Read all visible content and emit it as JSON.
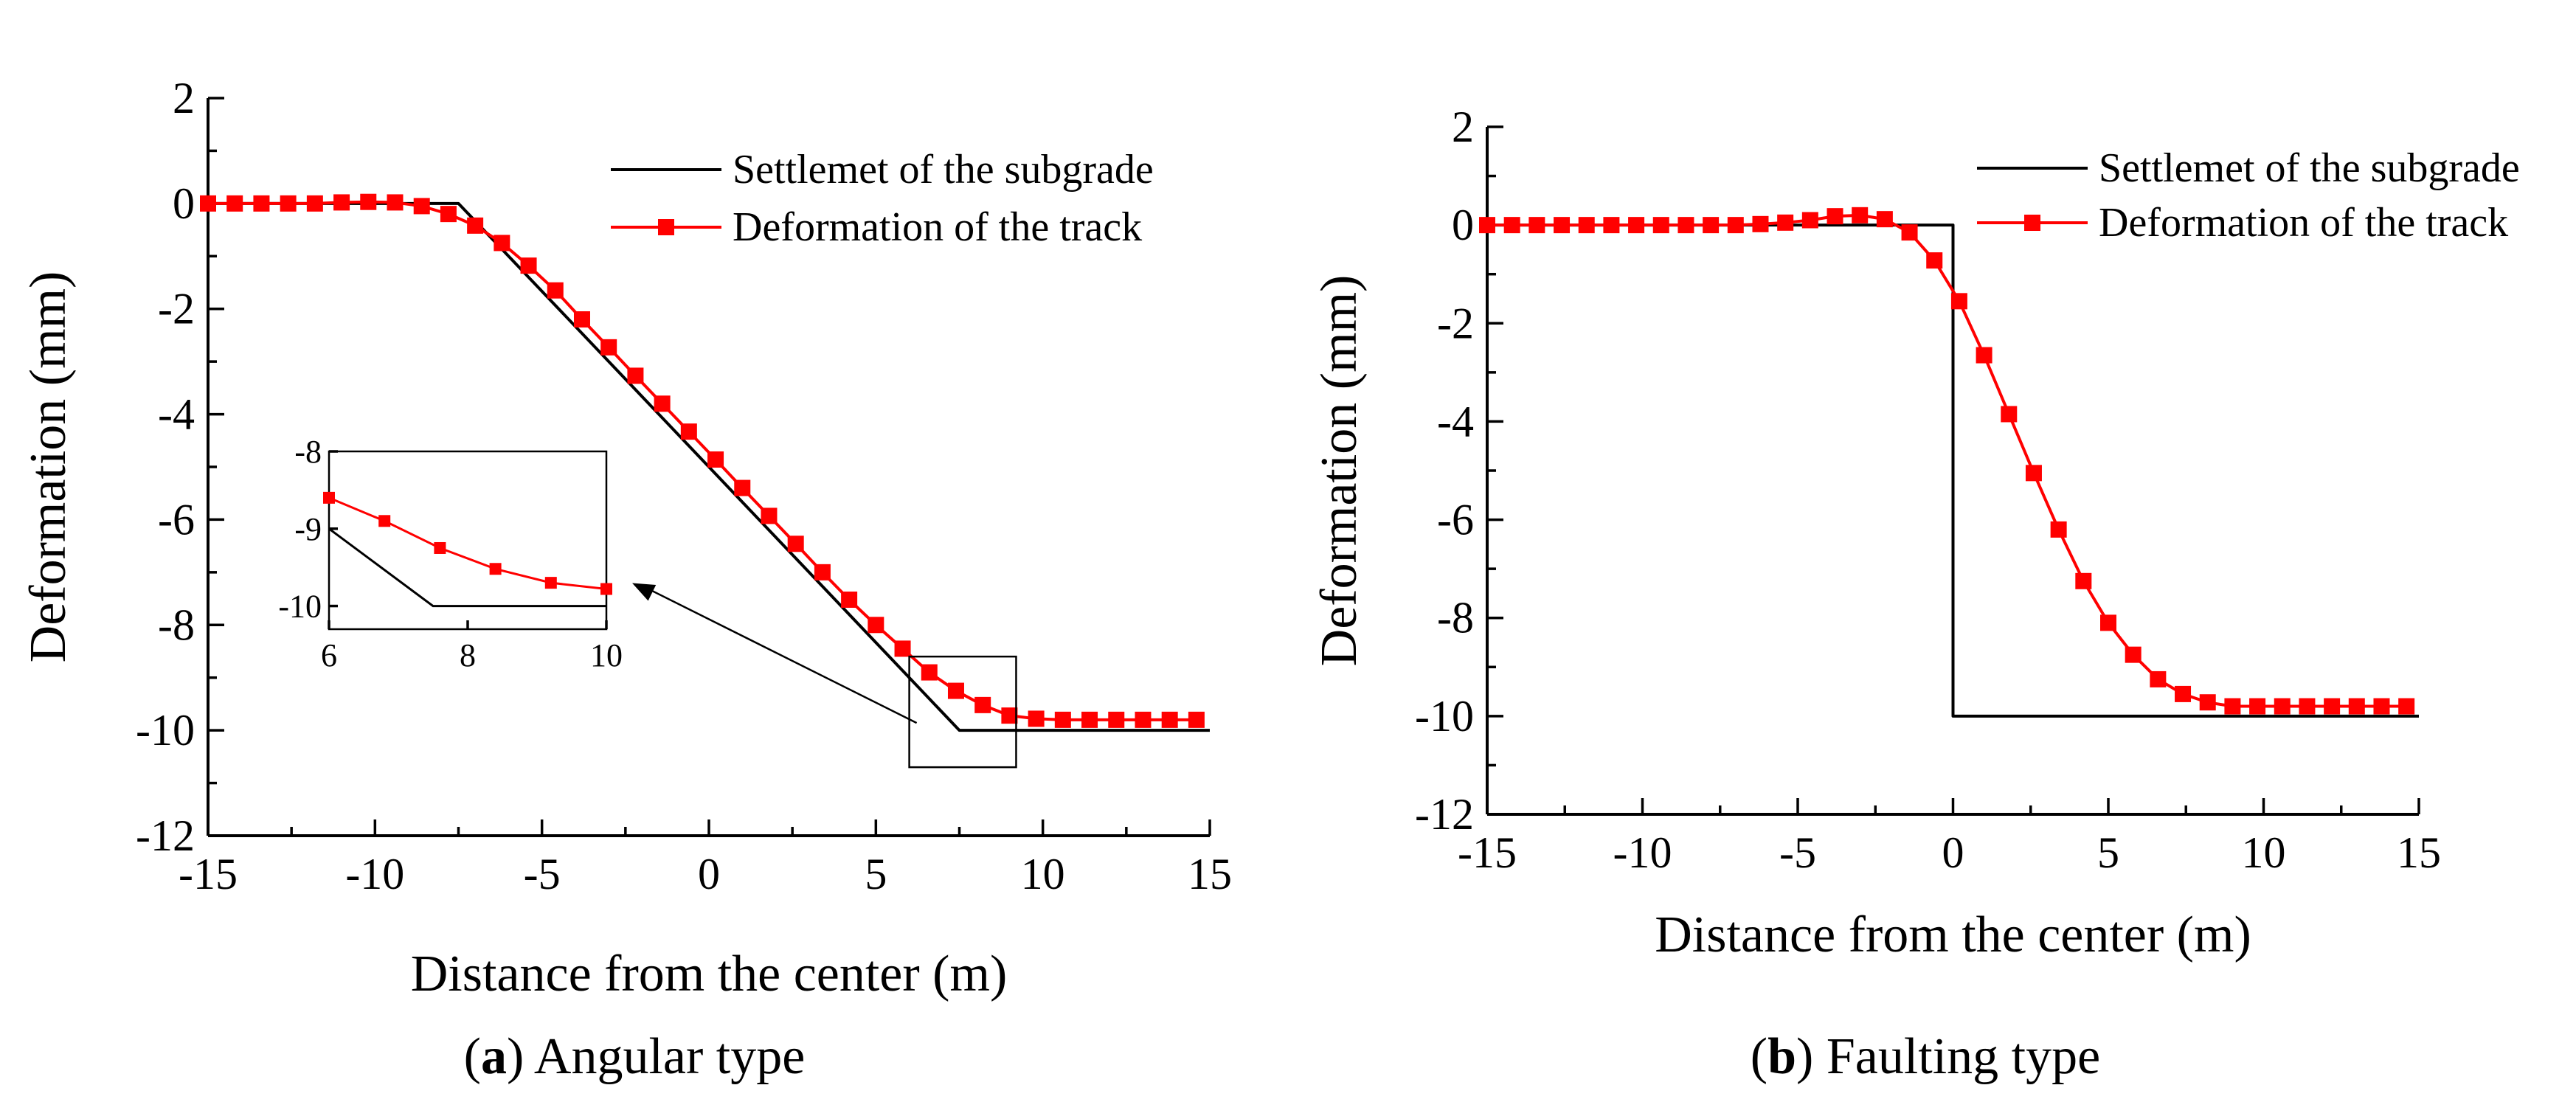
{
  "chart_data": [
    {
      "type": "line",
      "panel_label": "a",
      "caption": "Angular type",
      "xlabel": "Distance from the center (m)",
      "ylabel": "Deformation (mm)",
      "xlim": [
        -15,
        15
      ],
      "ylim": [
        -12,
        2
      ],
      "xticks": [
        -15,
        -10,
        -5,
        0,
        5,
        10,
        15
      ],
      "yticks": [
        -12,
        -10,
        -8,
        -6,
        -4,
        -2,
        0,
        2
      ],
      "grid": false,
      "legend_position": "top-right",
      "series": [
        {
          "name": "Settlemet of the subgrade",
          "color": "#000000",
          "marker": "none",
          "x": [
            -15,
            -7.5,
            7.5,
            15
          ],
          "y": [
            0,
            0,
            -10,
            -10
          ]
        },
        {
          "name": "Deformation of the track",
          "color": "#ff0000",
          "marker": "square",
          "x": [
            -15,
            -14.2,
            -13.4,
            -12.6,
            -11.8,
            -11.0,
            -10.2,
            -9.4,
            -8.6,
            -7.8,
            -7.0,
            -6.2,
            -5.4,
            -4.6,
            -3.8,
            -3.0,
            -2.2,
            -1.4,
            -0.6,
            0.2,
            1.0,
            1.8,
            2.6,
            3.4,
            4.2,
            5.0,
            5.8,
            6.6,
            7.4,
            8.2,
            9.0,
            9.8,
            10.6,
            11.4,
            12.2,
            13.0,
            13.8,
            14.6
          ],
          "y": [
            0,
            0,
            0,
            0,
            0,
            0.02,
            0.03,
            0.02,
            -0.05,
            -0.2,
            -0.42,
            -0.75,
            -1.18,
            -1.65,
            -2.2,
            -2.73,
            -3.27,
            -3.8,
            -4.33,
            -4.86,
            -5.4,
            -5.93,
            -6.46,
            -7.0,
            -7.52,
            -8.0,
            -8.45,
            -8.9,
            -9.25,
            -9.52,
            -9.72,
            -9.78,
            -9.8,
            -9.8,
            -9.8,
            -9.8,
            -9.8,
            -9.8
          ]
        }
      ],
      "inset": {
        "xlim": [
          6,
          10
        ],
        "ylim": [
          -10.3,
          -8
        ],
        "xticks": [
          6,
          8,
          10
        ],
        "yticks": [
          -8,
          -9,
          -10
        ],
        "zoom_region": {
          "xlim": [
            6,
            9.2
          ],
          "ylim": [
            -10.7,
            -8.6
          ]
        },
        "series": [
          {
            "name": "Settlemet of the subgrade",
            "x": [
              6,
              7.5,
              10
            ],
            "y": [
              -9,
              -10,
              -10
            ]
          },
          {
            "name": "Deformation of the track",
            "x": [
              6,
              6.8,
              7.6,
              8.4,
              9.2,
              10
            ],
            "y": [
              -8.6,
              -8.9,
              -9.25,
              -9.52,
              -9.7,
              -9.78
            ]
          }
        ]
      }
    },
    {
      "type": "line",
      "panel_label": "b",
      "caption": "Faulting type",
      "xlabel": "Distance from the center (m)",
      "ylabel": "Deformation (mm)",
      "xlim": [
        -15,
        15
      ],
      "ylim": [
        -12,
        2
      ],
      "xticks": [
        -15,
        -10,
        -5,
        0,
        5,
        10,
        15
      ],
      "yticks": [
        -12,
        -10,
        -8,
        -6,
        -4,
        -2,
        0,
        2
      ],
      "grid": false,
      "legend_position": "top-right",
      "series": [
        {
          "name": "Settlemet of the subgrade",
          "color": "#000000",
          "marker": "none",
          "x": [
            -15,
            0,
            0,
            15
          ],
          "y": [
            0,
            0,
            -10,
            -10
          ]
        },
        {
          "name": "Deformation of the track",
          "color": "#ff0000",
          "marker": "square",
          "x": [
            -15,
            -14.2,
            -13.4,
            -12.6,
            -11.8,
            -11.0,
            -10.2,
            -9.4,
            -8.6,
            -7.8,
            -7.0,
            -6.2,
            -5.4,
            -4.6,
            -3.8,
            -3.0,
            -2.2,
            -1.4,
            -0.6,
            0.2,
            1.0,
            1.8,
            2.6,
            3.4,
            4.2,
            5.0,
            5.8,
            6.6,
            7.4,
            8.2,
            9.0,
            9.8,
            10.6,
            11.4,
            12.2,
            13.0,
            13.8,
            14.6
          ],
          "y": [
            0,
            0,
            0,
            0,
            0,
            0,
            0,
            0,
            0,
            0,
            0,
            0.02,
            0.05,
            0.1,
            0.18,
            0.2,
            0.12,
            -0.15,
            -0.72,
            -1.55,
            -2.65,
            -3.85,
            -5.05,
            -6.2,
            -7.25,
            -8.1,
            -8.75,
            -9.25,
            -9.55,
            -9.72,
            -9.8,
            -9.8,
            -9.8,
            -9.8,
            -9.8,
            -9.8,
            -9.8,
            -9.8
          ]
        }
      ]
    }
  ]
}
